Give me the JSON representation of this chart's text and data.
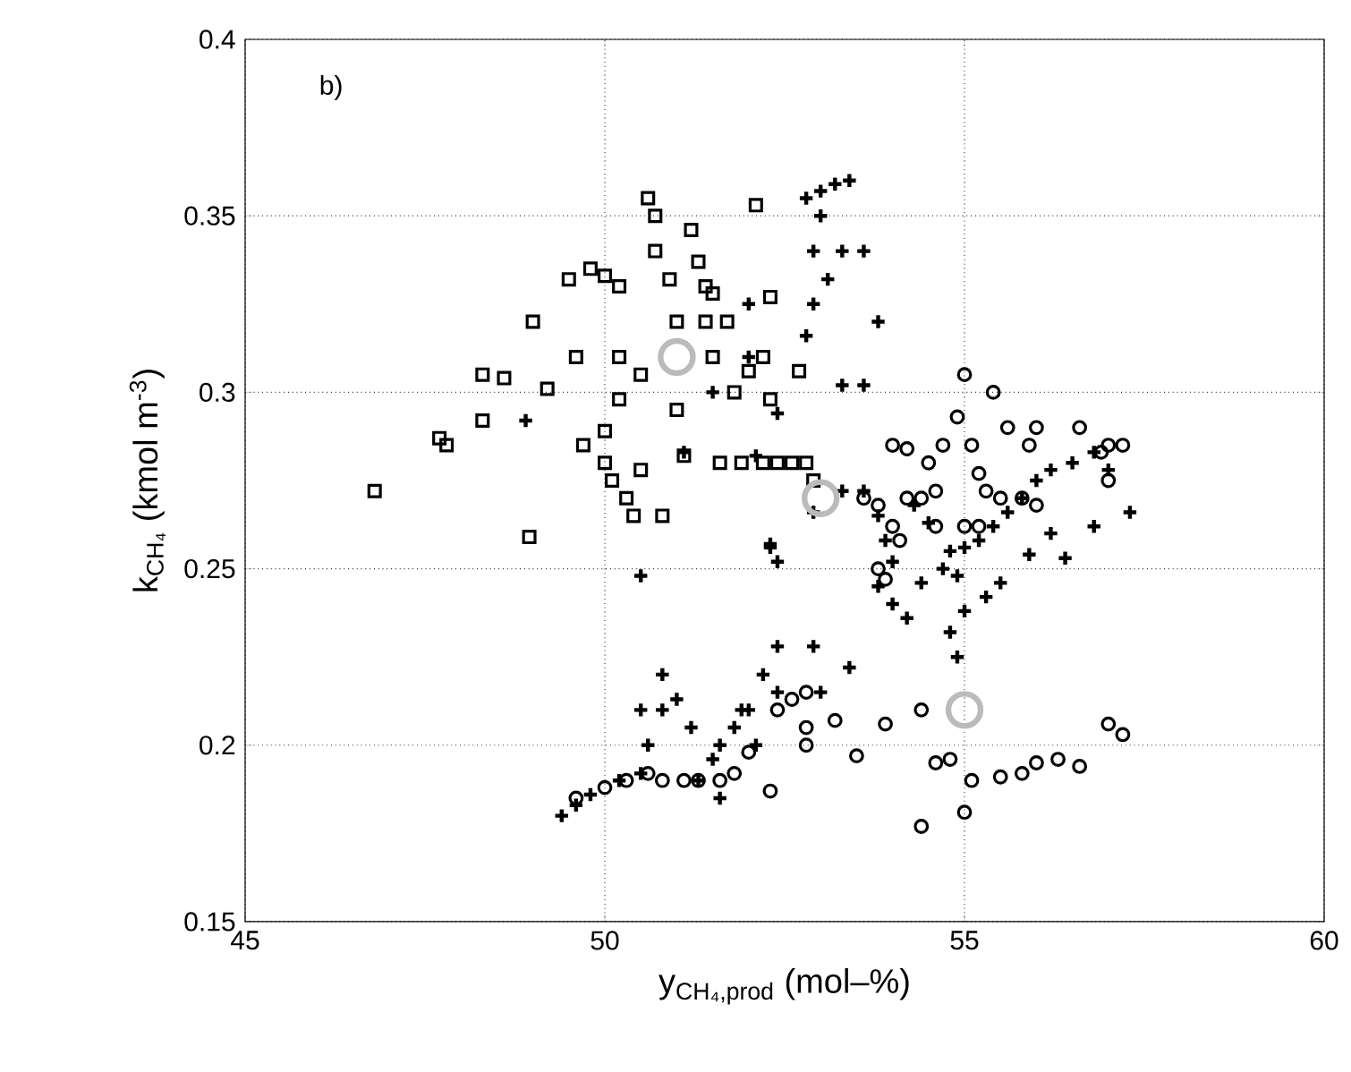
{
  "chart_data": {
    "type": "scatter",
    "xlabel": "y$_{CH₄,prod}$ (mol–%)",
    "ylabel": "k$_{CH₄}$ (kmol m$^{-3}$)",
    "annotations": [
      "b)"
    ],
    "xlim": [
      45,
      60
    ],
    "xticks": [
      45,
      50,
      55,
      60
    ],
    "ylim": [
      0.15,
      0.4
    ],
    "yticks": [
      0.15,
      0.2,
      0.25,
      0.3,
      0.35,
      0.4
    ],
    "grid": true,
    "line_style": "dotted",
    "series": [
      {
        "color": "#000000",
        "marker": "square",
        "x": [
          46.8,
          47.7,
          47.8,
          48.3,
          48.3,
          48.6,
          48.95,
          49.0,
          49.2,
          49.5,
          49.6,
          49.8,
          50.0,
          50.2,
          50.2,
          50.5,
          50.6,
          50.7,
          50.7,
          50.9,
          51.0,
          51.2,
          51.3,
          51.4,
          51.5,
          51.5,
          51.7,
          51.8,
          52.1,
          52.3,
          52.2,
          50.0,
          50.1,
          50.3,
          50.4,
          50.5,
          50.8,
          51.1,
          51.6,
          51.9,
          52.2,
          52.4,
          52.6,
          52.8,
          52.3,
          51.4,
          50.2,
          51.0,
          52.0,
          52.7,
          49.7,
          50.0,
          52.9
        ],
        "values": [
          0.272,
          0.287,
          0.285,
          0.305,
          0.292,
          0.304,
          0.259,
          0.32,
          0.301,
          0.332,
          0.31,
          0.335,
          0.333,
          0.33,
          0.31,
          0.305,
          0.355,
          0.35,
          0.34,
          0.332,
          0.32,
          0.346,
          0.337,
          0.33,
          0.328,
          0.31,
          0.32,
          0.3,
          0.353,
          0.327,
          0.31,
          0.28,
          0.275,
          0.27,
          0.265,
          0.278,
          0.265,
          0.282,
          0.28,
          0.28,
          0.28,
          0.28,
          0.28,
          0.28,
          0.298,
          0.32,
          0.298,
          0.295,
          0.306,
          0.306,
          0.285,
          0.289,
          0.275
        ]
      },
      {
        "color": "#000000",
        "marker": "cross",
        "x": [
          52.8,
          53.0,
          53.2,
          53.4,
          53.0,
          52.9,
          53.3,
          53.6,
          53.1,
          52.9,
          53.8,
          52.0,
          52.8,
          52.0,
          53.3,
          53.6,
          51.5,
          52.4,
          48.9,
          52.1,
          51.1,
          52.3,
          52.4,
          52.3,
          50.5,
          52.9,
          53.3,
          53.6,
          53.8,
          53.9,
          54.0,
          53.8,
          54.0,
          54.2,
          54.4,
          54.7,
          54.8,
          54.9,
          55.0,
          55.2,
          55.4,
          55.6,
          55.8,
          56.0,
          56.2,
          56.5,
          56.8,
          57.0,
          57.3,
          56.2,
          56.8,
          56.4,
          55.3,
          55.0,
          54.8,
          54.9,
          55.5,
          55.9,
          54.5,
          54.3,
          49.4,
          49.6,
          49.8,
          50.2,
          50.5,
          50.6,
          50.8,
          51.0,
          51.2,
          51.3,
          51.5,
          51.6,
          51.8,
          52.0,
          52.2,
          52.4,
          52.4,
          52.9,
          53.4,
          50.5,
          50.8,
          53.0,
          51.6,
          52.1,
          51.9
        ],
        "values": [
          0.355,
          0.357,
          0.359,
          0.36,
          0.35,
          0.34,
          0.34,
          0.34,
          0.332,
          0.325,
          0.32,
          0.325,
          0.316,
          0.31,
          0.302,
          0.302,
          0.3,
          0.294,
          0.292,
          0.282,
          0.283,
          0.257,
          0.252,
          0.256,
          0.248,
          0.266,
          0.272,
          0.272,
          0.265,
          0.258,
          0.252,
          0.245,
          0.24,
          0.236,
          0.246,
          0.25,
          0.255,
          0.248,
          0.256,
          0.258,
          0.262,
          0.266,
          0.27,
          0.275,
          0.278,
          0.28,
          0.283,
          0.278,
          0.266,
          0.26,
          0.262,
          0.253,
          0.242,
          0.238,
          0.232,
          0.225,
          0.246,
          0.254,
          0.263,
          0.268,
          0.18,
          0.183,
          0.186,
          0.19,
          0.192,
          0.2,
          0.21,
          0.213,
          0.205,
          0.19,
          0.196,
          0.2,
          0.205,
          0.21,
          0.22,
          0.215,
          0.228,
          0.228,
          0.222,
          0.21,
          0.22,
          0.215,
          0.185,
          0.2,
          0.21
        ]
      },
      {
        "color": "#000000",
        "marker": "circle",
        "x": [
          55.0,
          55.4,
          54.9,
          54.7,
          54.0,
          54.2,
          55.1,
          55.6,
          55.9,
          56.0,
          56.6,
          56.9,
          57.0,
          57.2,
          57.0,
          54.5,
          54.6,
          55.2,
          55.3,
          55.5,
          55.8,
          56.0,
          54.2,
          54.4,
          53.6,
          53.8,
          54.0,
          54.1,
          53.8,
          53.9,
          54.6,
          55.0,
          55.2,
          49.6,
          50.0,
          50.3,
          50.6,
          50.8,
          51.1,
          51.3,
          51.6,
          51.8,
          52.0,
          52.3,
          52.4,
          52.6,
          52.8,
          52.8,
          52.8,
          53.2,
          53.5,
          53.9,
          54.4,
          54.4,
          54.6,
          54.8,
          55.0,
          55.1,
          55.5,
          55.8,
          56.0,
          56.3,
          56.6,
          57.0,
          57.2
        ],
        "values": [
          0.305,
          0.3,
          0.293,
          0.285,
          0.285,
          0.284,
          0.285,
          0.29,
          0.285,
          0.29,
          0.29,
          0.283,
          0.285,
          0.285,
          0.275,
          0.28,
          0.272,
          0.277,
          0.272,
          0.27,
          0.27,
          0.268,
          0.27,
          0.27,
          0.27,
          0.268,
          0.262,
          0.258,
          0.25,
          0.247,
          0.262,
          0.262,
          0.262,
          0.185,
          0.188,
          0.19,
          0.192,
          0.19,
          0.19,
          0.19,
          0.19,
          0.192,
          0.198,
          0.187,
          0.21,
          0.213,
          0.215,
          0.205,
          0.2,
          0.207,
          0.197,
          0.206,
          0.21,
          0.177,
          0.195,
          0.196,
          0.181,
          0.19,
          0.191,
          0.192,
          0.195,
          0.196,
          0.194,
          0.206,
          0.203
        ]
      },
      {
        "color": "#bbbbbb",
        "marker": "circle",
        "x": [
          51.0,
          53.0,
          55.0
        ],
        "values": [
          0.31,
          0.27,
          0.21
        ]
      }
    ]
  }
}
